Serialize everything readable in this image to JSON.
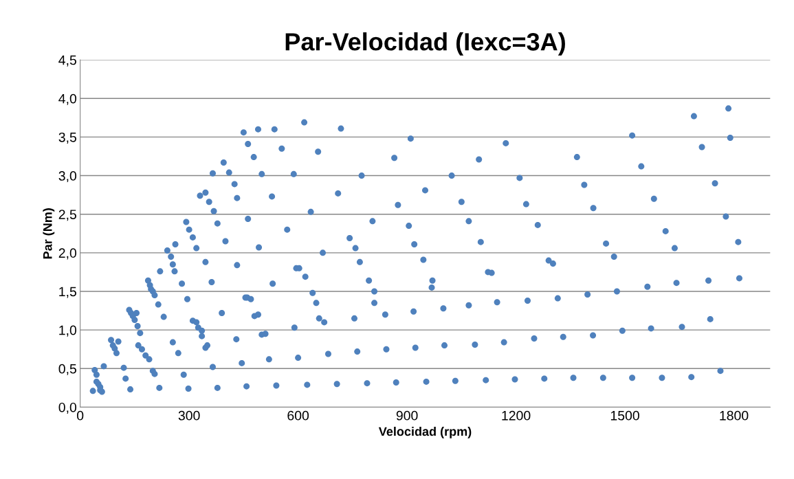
{
  "chart_data": {
    "type": "scatter",
    "title": "Par-Velocidad (Iexc=3A)",
    "xlabel": "Velocidad (rpm)",
    "ylabel": "Par (Nm)",
    "xlim": [
      0,
      1900
    ],
    "xticks": [
      0,
      300,
      600,
      900,
      1200,
      1500,
      1800
    ],
    "ylim": [
      0,
      4.5
    ],
    "yticks": [
      {
        "value": 0,
        "label": "0,0"
      },
      {
        "value": 0.5,
        "label": "0,5"
      },
      {
        "value": 1,
        "label": "1,0"
      },
      {
        "value": 1.5,
        "label": "1,5"
      },
      {
        "value": 2,
        "label": "2,0"
      },
      {
        "value": 2.5,
        "label": "2,5"
      },
      {
        "value": 3,
        "label": "3,0"
      },
      {
        "value": 3.5,
        "label": "3,5"
      },
      {
        "value": 4,
        "label": "4,0"
      },
      {
        "value": 4.5,
        "label": "4,5"
      }
    ],
    "grid": "y",
    "marker": "circle",
    "series": [
      {
        "color": "#4f81bd",
        "x": [
          35,
          40,
          45,
          45,
          50,
          55,
          60,
          55,
          138,
          218,
          298,
          378,
          458,
          540,
          625,
          707,
          790,
          870,
          953,
          1033,
          1117,
          1197,
          1278,
          1358,
          1440,
          1520,
          1602,
          1683,
          1763,
          65,
          120,
          125,
          200,
          205,
          285,
          365,
          445,
          520,
          600,
          683,
          763,
          843,
          923,
          1003,
          1087,
          1167,
          1250,
          1330,
          1412,
          1493,
          1572,
          1657,
          1735,
          85,
          90,
          95,
          100,
          105,
          160,
          170,
          180,
          190,
          255,
          270,
          335,
          345,
          350,
          430,
          500,
          510,
          590,
          672,
          755,
          840,
          918,
          1000,
          1070,
          1148,
          1232,
          1315,
          1397,
          1478,
          1562,
          1642,
          1730,
          1815,
          135,
          140,
          145,
          150,
          155,
          158,
          165,
          215,
          230,
          280,
          295,
          310,
          320,
          325,
          335,
          390,
          455,
          460,
          470,
          480,
          490,
          530,
          595,
          603,
          620,
          640,
          650,
          658,
          758,
          770,
          795,
          810,
          810,
          945,
          968,
          970,
          1070,
          1103,
          1123,
          1133,
          1290,
          1302,
          1448,
          1470,
          1612,
          1637,
          1778,
          1812,
          187,
          192,
          195,
          200,
          205,
          220,
          240,
          250,
          255,
          260,
          262,
          292,
          300,
          310,
          320,
          330,
          345,
          345,
          355,
          362,
          365,
          368,
          378,
          395,
          400,
          410,
          425,
          432,
          432,
          450,
          462,
          462,
          478,
          490,
          492,
          500,
          528,
          535,
          555,
          570,
          588,
          617,
          635,
          655,
          668,
          710,
          718,
          742,
          775,
          805,
          865,
          875,
          905,
          910,
          920,
          950,
          1023,
          1050,
          1098,
          1172,
          1210,
          1228,
          1260,
          1368,
          1388,
          1413,
          1520,
          1545,
          1580,
          1690,
          1712,
          1748,
          1785,
          1790
        ],
        "values": [
          0.21,
          0.48,
          0.42,
          0.33,
          0.3,
          0.26,
          0.2,
          0.22,
          0.23,
          0.25,
          0.24,
          0.25,
          0.27,
          0.28,
          0.29,
          0.3,
          0.31,
          0.32,
          0.33,
          0.34,
          0.35,
          0.36,
          0.37,
          0.38,
          0.38,
          0.38,
          0.38,
          0.39,
          0.47,
          0.53,
          0.51,
          0.37,
          0.47,
          0.43,
          0.42,
          0.52,
          0.57,
          0.62,
          0.64,
          0.69,
          0.72,
          0.75,
          0.77,
          0.8,
          0.81,
          0.84,
          0.89,
          0.91,
          0.93,
          0.99,
          1.02,
          1.04,
          1.14,
          0.87,
          0.8,
          0.76,
          0.7,
          0.85,
          0.8,
          0.75,
          0.67,
          0.62,
          0.84,
          0.7,
          0.92,
          0.77,
          0.8,
          0.88,
          0.94,
          0.95,
          1.03,
          1.1,
          1.15,
          1.2,
          1.24,
          1.28,
          1.32,
          1.36,
          1.38,
          1.41,
          1.46,
          1.5,
          1.56,
          1.61,
          1.64,
          1.67,
          1.26,
          1.22,
          1.18,
          1.13,
          1.22,
          1.05,
          0.96,
          1.33,
          1.17,
          1.6,
          1.4,
          1.12,
          1.1,
          1.03,
          0.99,
          1.22,
          1.42,
          1.42,
          1.4,
          1.18,
          1.2,
          1.6,
          1.8,
          1.8,
          1.69,
          1.48,
          1.35,
          1.15,
          2.06,
          1.88,
          1.64,
          1.5,
          1.35,
          1.91,
          1.55,
          1.64,
          2.41,
          2.14,
          1.75,
          1.74,
          1.9,
          1.86,
          2.12,
          1.95,
          2.28,
          2.06,
          2.47,
          2.14,
          1.64,
          1.58,
          1.53,
          1.5,
          1.45,
          1.76,
          2.03,
          1.95,
          1.85,
          1.76,
          2.11,
          2.4,
          2.3,
          2.2,
          2.06,
          2.74,
          1.88,
          2.78,
          2.66,
          1.62,
          3.03,
          2.54,
          2.38,
          3.17,
          2.15,
          3.04,
          2.89,
          2.71,
          1.84,
          3.56,
          3.41,
          2.44,
          3.24,
          3.6,
          2.07,
          3.02,
          2.73,
          3.6,
          3.35,
          2.3,
          3.02,
          3.69,
          2.53,
          3.31,
          2.0,
          2.77,
          3.61,
          2.19,
          3.0,
          2.41,
          3.23,
          2.62,
          2.35,
          3.48,
          2.11,
          2.81,
          3.0,
          2.66,
          3.21,
          3.42,
          2.97,
          2.63,
          2.36,
          3.24,
          2.88,
          2.58,
          3.52,
          3.12,
          2.7,
          3.77,
          3.37,
          2.9,
          3.87,
          3.49
        ]
      }
    ]
  }
}
